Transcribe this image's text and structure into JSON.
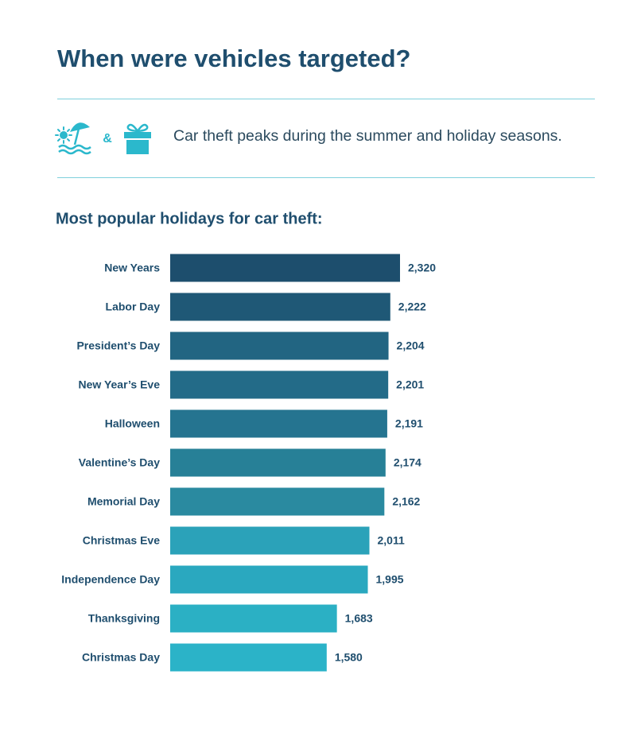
{
  "title": "When were vehicles targeted?",
  "ampersand": "&",
  "tagline": "Car theft peaks during the summer and holiday seasons.",
  "chart_data": {
    "type": "bar",
    "orientation": "horizontal",
    "title": "Most popular holidays for car theft:",
    "categories": [
      "New Years",
      "Labor Day",
      "President’s Day",
      "New Year’s Eve",
      "Halloween",
      "Valentine’s Day",
      "Memorial Day",
      "Christmas Eve",
      "Independence Day",
      "Thanksgiving",
      "Christmas Day"
    ],
    "values": [
      2320,
      2222,
      2204,
      2201,
      2191,
      2174,
      2162,
      2011,
      1995,
      1683,
      1580
    ],
    "value_labels": [
      "2,320",
      "2,222",
      "2,204",
      "2,201",
      "2,191",
      "2,174",
      "2,162",
      "2,011",
      "1,995",
      "1,683",
      "1,580"
    ],
    "colors": [
      "#1d4e6d",
      "#1f5876",
      "#226582",
      "#236b88",
      "#257490",
      "#278097",
      "#2a8aa0",
      "#2ba2b9",
      "#2aa8bf",
      "#2bb0c4",
      "#2bb3c8"
    ]
  }
}
